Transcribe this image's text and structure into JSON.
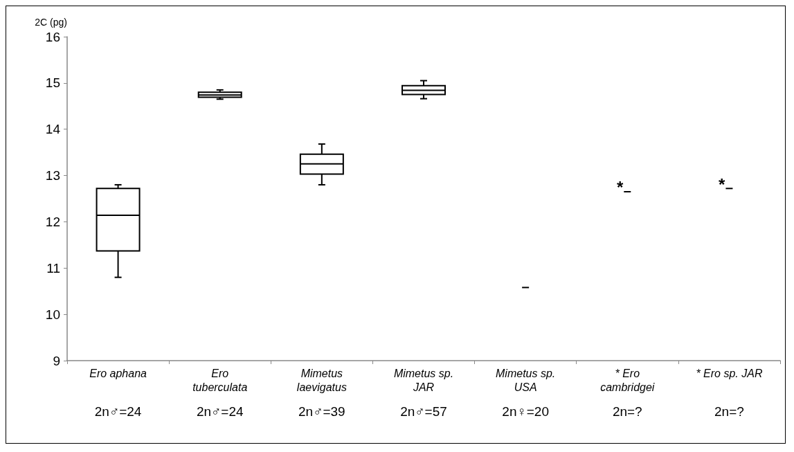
{
  "chart_data": {
    "type": "box",
    "ylabel": "2C (pg)",
    "categories": [
      "Ero aphana",
      "Ero\ntuberculata",
      "Mimetus\nlaevigatus",
      "Mimetus sp.\nJAR",
      "Mimetus sp.\nUSA",
      "* Ero\ncambridgei",
      "* Ero sp. JAR"
    ],
    "boxes": [
      {
        "low": 10.8,
        "q1": 11.37,
        "median": 12.14,
        "q3": 12.72,
        "high": 12.8
      },
      {
        "low": 14.65,
        "q1": 14.69,
        "median": 14.74,
        "q3": 14.8,
        "high": 14.85
      },
      {
        "low": 12.8,
        "q1": 13.03,
        "median": 13.25,
        "q3": 13.46,
        "high": 13.68
      },
      {
        "low": 14.66,
        "q1": 14.75,
        "median": 14.84,
        "q3": 14.94,
        "high": 15.05
      },
      {
        "low": 10.58,
        "q1": 10.58,
        "median": 10.58,
        "q3": 10.58,
        "high": 10.58
      },
      {
        "low": 12.65,
        "q1": 12.65,
        "median": 12.65,
        "q3": 12.65,
        "high": 12.65
      },
      {
        "low": 12.72,
        "q1": 12.72,
        "median": 12.72,
        "q3": 12.72,
        "high": 12.72
      }
    ],
    "ylim": [
      9,
      16
    ],
    "yticks": [
      9,
      10,
      11,
      12,
      13,
      14,
      15,
      16
    ],
    "grid": false,
    "annotations": [
      "2n♂=24",
      "2n♂=24",
      "2n♂=39",
      "2n♂=57",
      "2n♀=20",
      "2n=?",
      "2n=?",
      "*",
      "*"
    ]
  }
}
